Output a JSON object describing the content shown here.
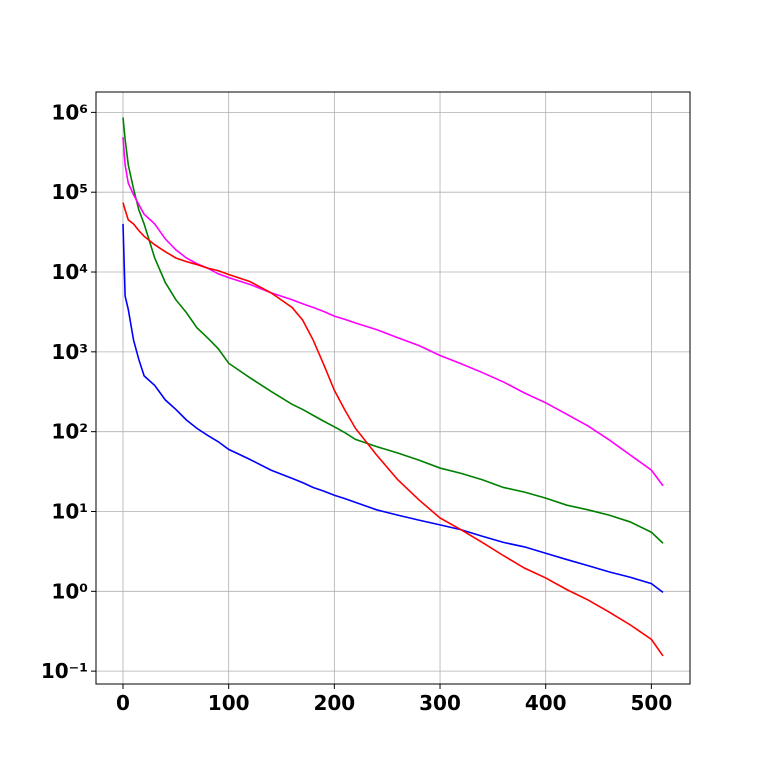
{
  "chart_data": {
    "type": "line",
    "yscale": "log",
    "grid": true,
    "x": [
      0,
      2,
      5,
      10,
      15,
      20,
      30,
      40,
      50,
      60,
      70,
      80,
      90,
      100,
      120,
      140,
      160,
      170,
      180,
      190,
      200,
      210,
      220,
      240,
      260,
      280,
      300,
      320,
      340,
      360,
      380,
      400,
      420,
      440,
      460,
      480,
      500,
      511
    ],
    "series": [
      {
        "color": "#0000ff",
        "values": [
          40000,
          5000,
          3400,
          1400,
          800,
          500,
          380,
          250,
          190,
          140,
          110,
          90,
          75,
          60,
          45,
          33,
          26,
          23,
          20,
          18,
          16,
          14.5,
          13,
          10.5,
          9,
          7.8,
          6.8,
          5.9,
          4.9,
          4.1,
          3.6,
          3.0,
          2.5,
          2.1,
          1.75,
          1.5,
          1.25,
          0.97
        ]
      },
      {
        "color": "#008000",
        "values": [
          860000,
          460000,
          220000,
          110000,
          60000,
          40000,
          15000,
          7400,
          4500,
          3100,
          2000,
          1500,
          1100,
          720,
          475,
          320,
          220,
          190,
          160,
          135,
          115,
          97,
          80,
          65,
          54,
          44,
          35,
          30,
          25,
          20,
          17.5,
          14.7,
          12,
          10.5,
          9,
          7.4,
          5.5,
          4
        ]
      },
      {
        "color": "#ff00ff",
        "values": [
          490000,
          220000,
          130000,
          93000,
          70000,
          53000,
          40000,
          26000,
          19000,
          15000,
          12700,
          11200,
          9500,
          8500,
          7000,
          5500,
          4500,
          4000,
          3600,
          3200,
          2800,
          2550,
          2300,
          1900,
          1500,
          1200,
          900,
          710,
          550,
          420,
          305,
          230,
          165,
          118,
          79,
          51,
          33,
          21
        ]
      },
      {
        "color": "#ff0000",
        "values": [
          74000,
          60000,
          45000,
          40000,
          33000,
          28000,
          22000,
          18000,
          15000,
          13500,
          12400,
          11200,
          10400,
          9300,
          7600,
          5500,
          3600,
          2500,
          1400,
          690,
          330,
          186,
          110,
          51,
          25,
          14,
          8.3,
          5.9,
          4.1,
          2.8,
          1.95,
          1.47,
          1.05,
          0.78,
          0.55,
          0.38,
          0.25,
          0.155
        ]
      }
    ],
    "xlim": [
      -25.55,
      536.55
    ],
    "xticks": [
      0,
      100,
      200,
      300,
      400,
      500
    ],
    "ylim": [
      0.069,
      1800000
    ],
    "yticks": [
      {
        "value": 0.1,
        "label": "10⁻¹"
      },
      {
        "value": 1,
        "label": "10⁰"
      },
      {
        "value": 10,
        "label": "10¹"
      },
      {
        "value": 100,
        "label": "10²"
      },
      {
        "value": 1000,
        "label": "10³"
      },
      {
        "value": 10000,
        "label": "10⁴"
      },
      {
        "value": 100000,
        "label": "10⁵"
      },
      {
        "value": 1000000,
        "label": "10⁶"
      }
    ]
  }
}
